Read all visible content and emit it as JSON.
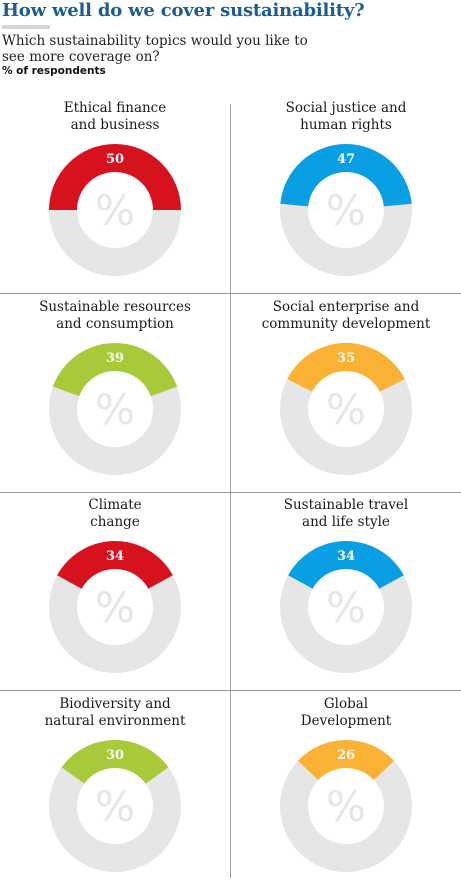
{
  "header": {
    "title": "How well do we cover sustainability?",
    "subtitle": "Which sustainability topics would you like to see more coverage on?",
    "units": "% of respondents"
  },
  "colors": {
    "red": "#d7121f",
    "blue": "#0a9fe3",
    "green": "#a7c93a",
    "orange": "#f9b233",
    "ring": "#e6e6e6",
    "title": "#1a5d93"
  },
  "center_symbol": "%",
  "chart_data": {
    "type": "donut",
    "unit": "%",
    "items": [
      {
        "label": "Ethical finance and business",
        "label_lines": [
          "Ethical finance",
          "and business"
        ],
        "value": 50,
        "color": "#d7121f"
      },
      {
        "label": "Social justice and human rights",
        "label_lines": [
          "Social justice and",
          "human rights"
        ],
        "value": 47,
        "color": "#0a9fe3"
      },
      {
        "label": "Sustainable resources and consumption",
        "label_lines": [
          "Sustainable resources",
          "and consumption"
        ],
        "value": 39,
        "color": "#a7c93a"
      },
      {
        "label": "Social enterprise and community development",
        "label_lines": [
          "Social enterprise and",
          "community development"
        ],
        "value": 35,
        "color": "#f9b233"
      },
      {
        "label": "Climate change",
        "label_lines": [
          "Climate",
          "change"
        ],
        "value": 34,
        "color": "#d7121f"
      },
      {
        "label": "Sustainable travel and life style",
        "label_lines": [
          "Sustainable travel",
          "and life style"
        ],
        "value": 34,
        "color": "#0a9fe3"
      },
      {
        "label": "Biodiversity and natural environment",
        "label_lines": [
          "Biodiversity and",
          "natural environment"
        ],
        "value": 30,
        "color": "#a7c93a"
      },
      {
        "label": "Global Development",
        "label_lines": [
          "Global",
          "Development"
        ],
        "value": 26,
        "color": "#f9b233"
      }
    ]
  }
}
